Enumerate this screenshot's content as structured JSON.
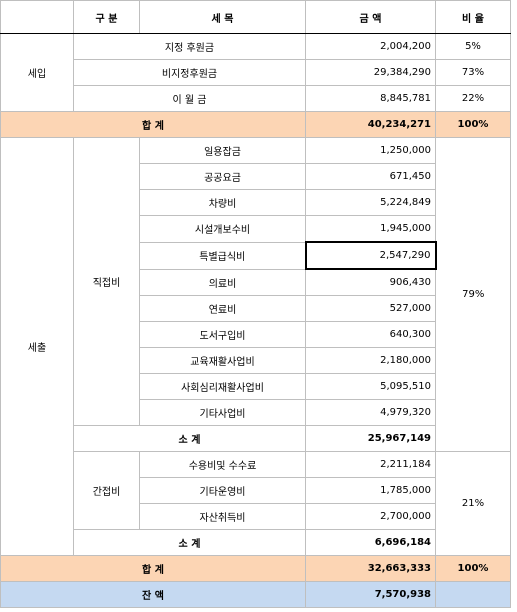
{
  "header": [
    "구 분",
    "세 목",
    "금 액",
    "비 율"
  ],
  "income": {
    "label": "세입",
    "rows": [
      {
        "item": "지정 후원금",
        "amount": "2,004,200",
        "ratio": "5%"
      },
      {
        "item": "비지정후원금",
        "amount": "29,384,290",
        "ratio": "73%"
      },
      {
        "item": "이 월 금",
        "amount": "8,845,781",
        "ratio": "22%"
      }
    ],
    "total": {
      "label": "합 계",
      "amount": "40,234,271",
      "ratio": "100%"
    }
  },
  "expense": {
    "label": "세출",
    "direct": {
      "label": "직접비",
      "ratio": "79%",
      "rows": [
        {
          "item": "일용잡금",
          "amount": "1,250,000"
        },
        {
          "item": "공공요금",
          "amount": "671,450"
        },
        {
          "item": "차량비",
          "amount": "5,224,849"
        },
        {
          "item": "시설개보수비",
          "amount": "1,945,000"
        },
        {
          "item": "특별급식비",
          "amount": "2,547,290"
        },
        {
          "item": "의료비",
          "amount": "906,430"
        },
        {
          "item": "연료비",
          "amount": "527,000"
        },
        {
          "item": "도서구입비",
          "amount": "640,300"
        },
        {
          "item": "교육재활사업비",
          "amount": "2,180,000"
        },
        {
          "item": "사회심리재활사업비",
          "amount": "5,095,510"
        },
        {
          "item": "기타사업비",
          "amount": "4,979,320"
        }
      ],
      "subtotal": {
        "label": "소 계",
        "amount": "25,967,149"
      }
    },
    "indirect": {
      "label": "간접비",
      "ratio": "21%",
      "rows": [
        {
          "item": "수용비및 수수료",
          "amount": "2,211,184"
        },
        {
          "item": "기타운영비",
          "amount": "1,785,000"
        },
        {
          "item": "자산취득비",
          "amount": "2,700,000"
        }
      ],
      "subtotal": {
        "label": "소 계",
        "amount": "6,696,184"
      }
    },
    "total": {
      "label": "합 계",
      "amount": "32,663,333",
      "ratio": "100%"
    }
  },
  "balance": {
    "label": "잔 액",
    "amount": "7,570,938"
  }
}
